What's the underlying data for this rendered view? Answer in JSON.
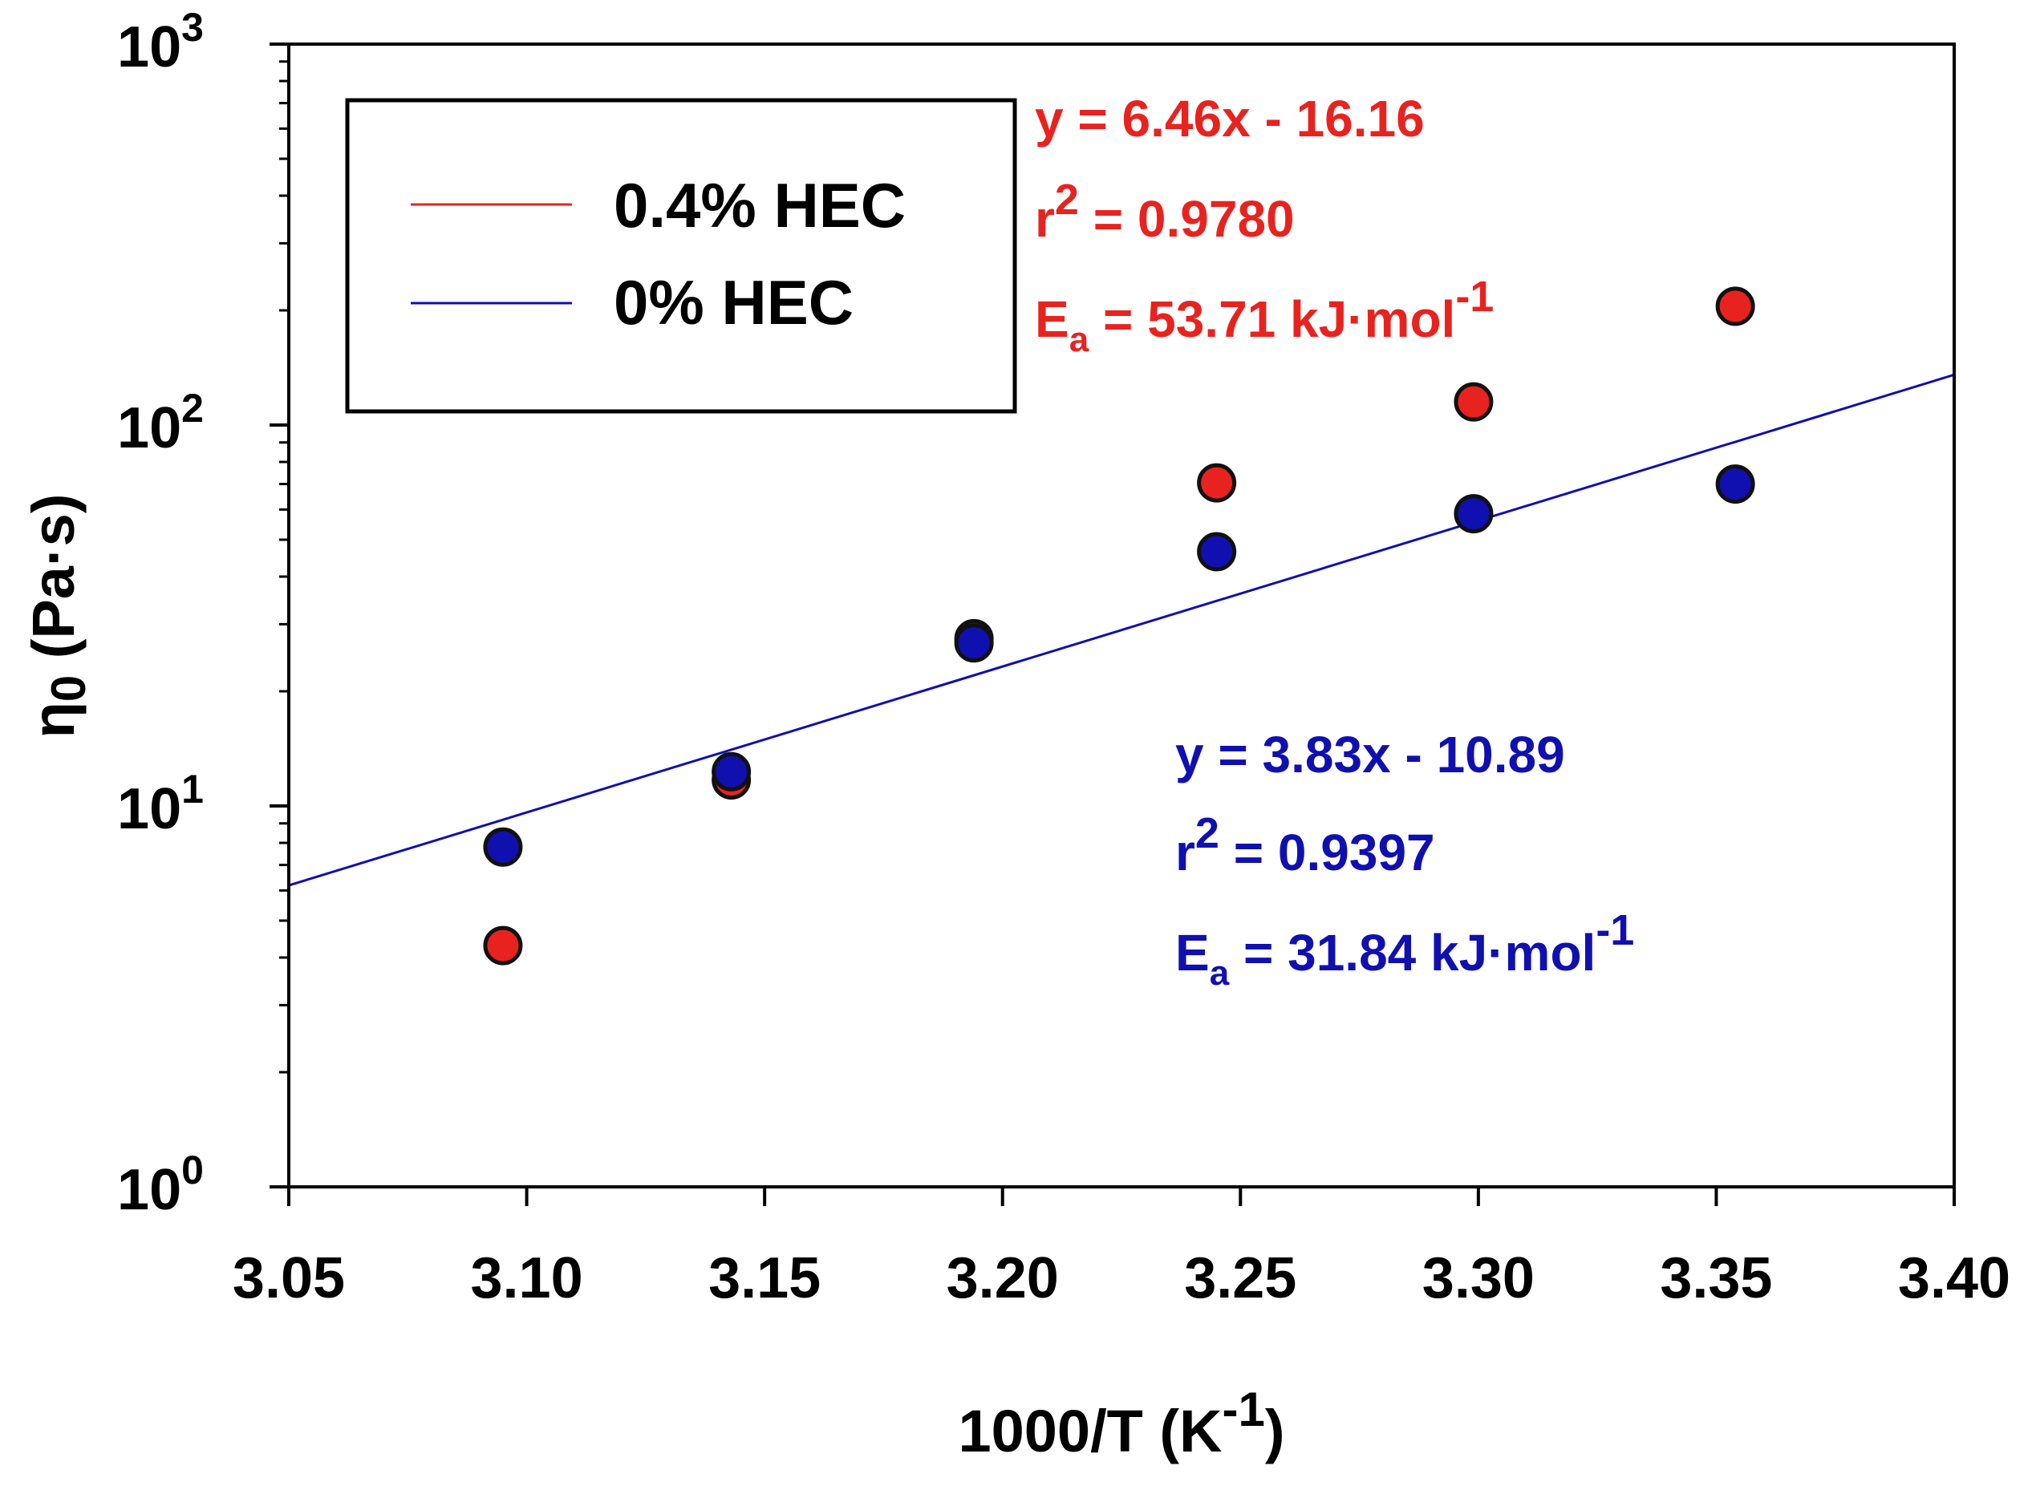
{
  "chart_data": {
    "type": "scatter",
    "xlabel": "1000/T  (K",
    "xlabel_sup": "-1",
    "xlabel_tail": ")",
    "ylabel": "η",
    "ylabel_sub": "0",
    "ylabel_tail": " (Pa·s)",
    "xlim": [
      3.05,
      3.4
    ],
    "ylim": [
      1,
      1000
    ],
    "yscale": "log",
    "grid": false,
    "x_ticks": [
      "3.05",
      "3.10",
      "3.15",
      "3.20",
      "3.25",
      "3.30",
      "3.35",
      "3.40"
    ],
    "x_tick_values": [
      3.05,
      3.1,
      3.15,
      3.2,
      3.25,
      3.3,
      3.35,
      3.4
    ],
    "y_ticks": [
      {
        "base": "10",
        "exp": "0",
        "value": 1
      },
      {
        "base": "10",
        "exp": "1",
        "value": 10
      },
      {
        "base": "10",
        "exp": "2",
        "value": 100
      },
      {
        "base": "10",
        "exp": "3",
        "value": 1000
      }
    ],
    "legend": {
      "position": "top-left",
      "entries": [
        {
          "label": "0.4% HEC",
          "color": "#e8231f"
        },
        {
          "label": "0% HEC",
          "color": "#1010b0"
        }
      ]
    },
    "series": [
      {
        "name": "0.4% HEC",
        "color": "#e8231f",
        "points": [
          {
            "x": 3.095,
            "y": 4.3
          },
          {
            "x": 3.143,
            "y": 11.7
          },
          {
            "x": 3.194,
            "y": 27.5
          },
          {
            "x": 3.245,
            "y": 70.5
          },
          {
            "x": 3.299,
            "y": 115
          },
          {
            "x": 3.354,
            "y": 205
          }
        ],
        "fit": {
          "slope": 6.46,
          "intercept": -16.16
        },
        "annotation": {
          "equation": "y = 6.46x - 16.16",
          "r2_prefix": "r",
          "r2_sup": "2",
          "r2_value": " = 0.9780",
          "ea_prefix": "E",
          "ea_sub": "a",
          "ea_value": " = 53.71 kJ·mol",
          "ea_sup": "-1"
        }
      },
      {
        "name": "0% HEC",
        "color": "#1010b0",
        "points": [
          {
            "x": 3.095,
            "y": 7.8
          },
          {
            "x": 3.143,
            "y": 12.3
          },
          {
            "x": 3.194,
            "y": 26.8
          },
          {
            "x": 3.245,
            "y": 46.5
          },
          {
            "x": 3.299,
            "y": 58.5
          },
          {
            "x": 3.354,
            "y": 70
          }
        ],
        "fit": {
          "slope": 3.83,
          "intercept": -10.89
        },
        "annotation": {
          "equation": "y = 3.83x - 10.89",
          "r2_prefix": "r",
          "r2_sup": "2",
          "r2_value": " = 0.9397",
          "ea_prefix": "E",
          "ea_sub": "a",
          "ea_value": " = 31.84 kJ·mol",
          "ea_sup": "-1"
        }
      }
    ]
  }
}
